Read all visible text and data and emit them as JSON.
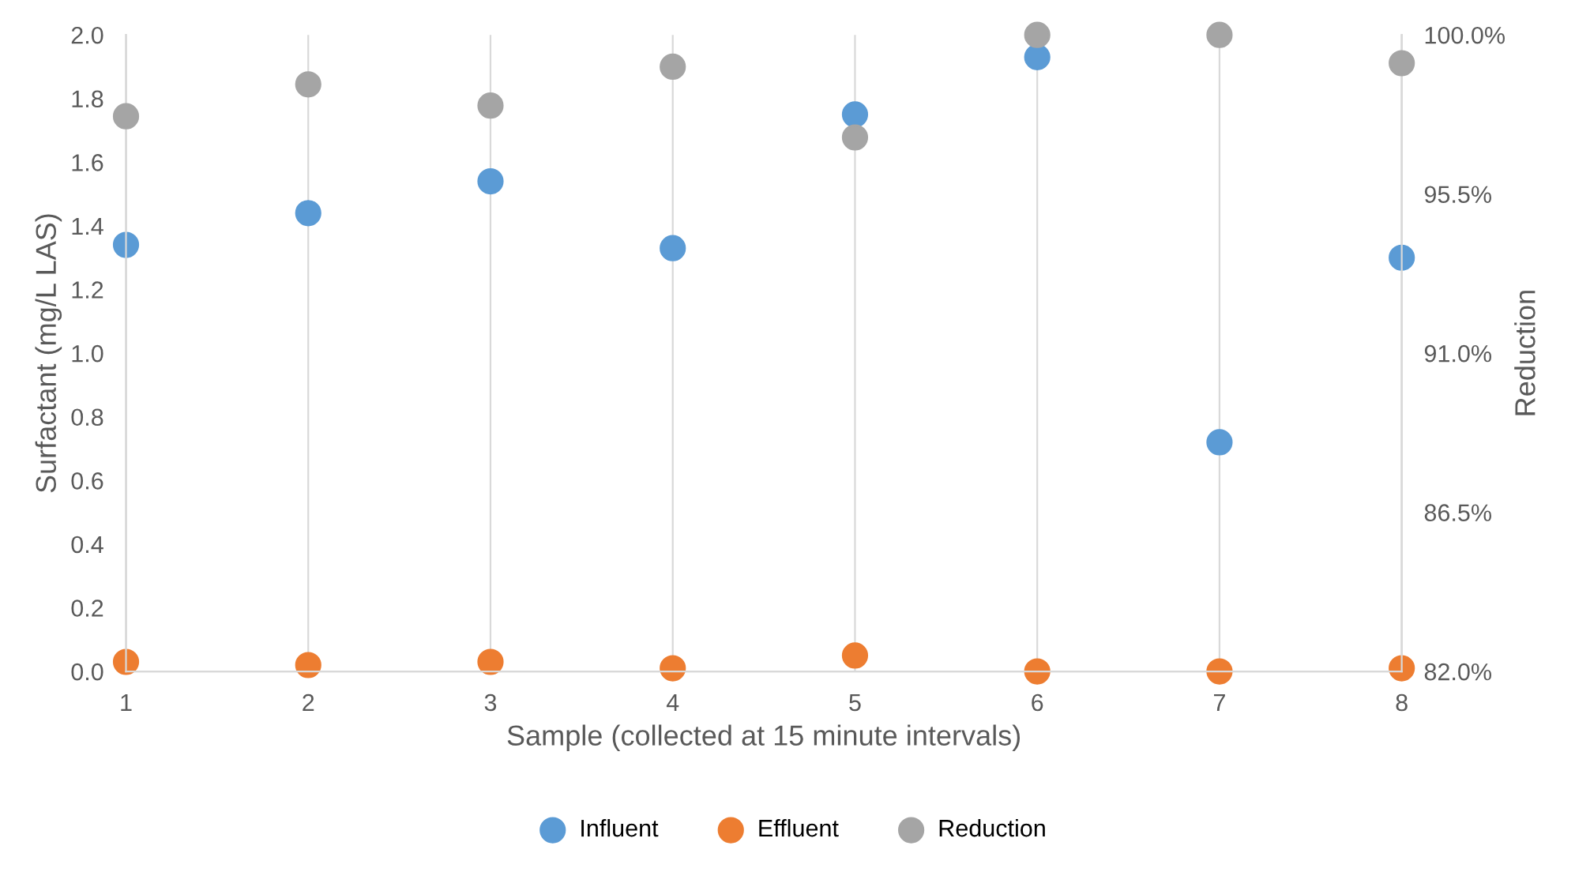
{
  "chart_data": {
    "type": "scatter",
    "xlabel": "Sample (collected at 15 minute intervals)",
    "ylabel": "Surfactant (mg/L LAS)",
    "y2label": "Reduction",
    "x": [
      1,
      2,
      3,
      4,
      5,
      6,
      7,
      8
    ],
    "series": [
      {
        "name": "Influent",
        "color": "#5b9bd5",
        "values": [
          1.34,
          1.44,
          1.54,
          1.33,
          1.75,
          1.93,
          0.72,
          1.3
        ]
      },
      {
        "name": "Effluent",
        "color": "#ed7d31",
        "values": [
          0.03,
          0.02,
          0.03,
          0.01,
          0.05,
          0.0,
          0.0,
          0.01
        ]
      },
      {
        "name": "Reduction",
        "color": "#a5a5a5",
        "axis": "y2",
        "values": [
          97.7,
          98.6,
          98.0,
          99.1,
          97.1,
          100.0,
          100.0,
          99.2
        ]
      }
    ],
    "xlim": [
      1,
      8
    ],
    "xticks": [
      1,
      2,
      3,
      4,
      5,
      6,
      7,
      8
    ],
    "ylim": [
      0,
      2
    ],
    "yticks": [
      {
        "value": 0,
        "label": "0.0"
      },
      {
        "value": 0.2,
        "label": "0.2"
      },
      {
        "value": 0.4,
        "label": "0.4"
      },
      {
        "value": 0.6,
        "label": "0.6"
      },
      {
        "value": 0.8,
        "label": "0.8"
      },
      {
        "value": 1.0,
        "label": "1.0"
      },
      {
        "value": 1.2,
        "label": "1.2"
      },
      {
        "value": 1.4,
        "label": "1.4"
      },
      {
        "value": 1.6,
        "label": "1.6"
      },
      {
        "value": 1.8,
        "label": "1.8"
      },
      {
        "value": 2.0,
        "label": "2.0"
      }
    ],
    "y2lim": [
      82,
      100
    ],
    "y2ticks": [
      {
        "value": 82,
        "label": "82.0%"
      },
      {
        "value": 86.5,
        "label": "86.5%"
      },
      {
        "value": 91,
        "label": "91.0%"
      },
      {
        "value": 95.5,
        "label": "95.5%"
      },
      {
        "value": 100,
        "label": "100.0%"
      }
    ],
    "grid": "x",
    "legend": "bottom",
    "marker": "circle"
  }
}
